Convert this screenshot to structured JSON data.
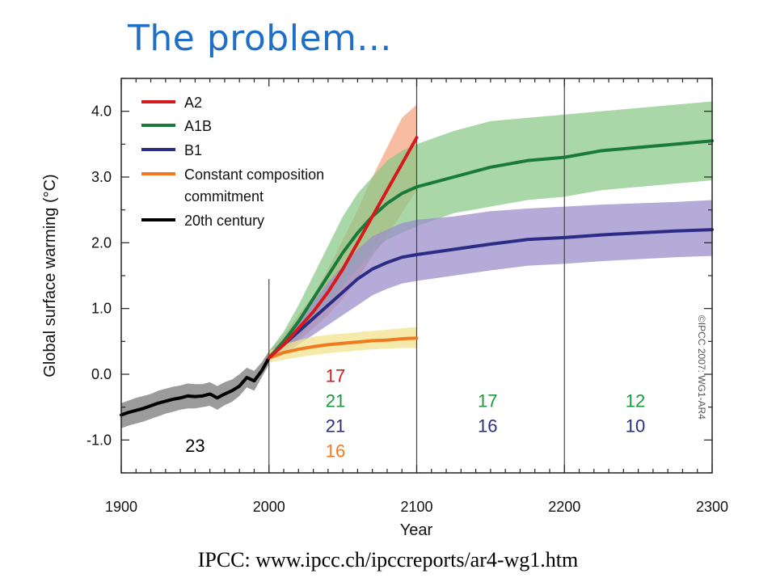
{
  "slide": {
    "title": "The problem...",
    "source": "IPCC: www.ipcc.ch/ipccreports/ar4-wg1.htm"
  },
  "chart_data": {
    "type": "line",
    "title": "",
    "xlabel": "Year",
    "ylabel": "Global surface warming (°C)",
    "xlim": [
      1900,
      2300
    ],
    "ylim": [
      -1.5,
      4.5
    ],
    "x_ticks": [
      1900,
      2000,
      2100,
      2200,
      2300
    ],
    "y_ticks": [
      -1.0,
      0.0,
      1.0,
      2.0,
      3.0,
      4.0
    ],
    "y_tick_labels": [
      "-1.0",
      "0.0",
      "1.0",
      "2.0",
      "3.0",
      "4.0"
    ],
    "vertical_lines": [
      2000,
      2100,
      2200
    ],
    "legend_position": "top-left",
    "watermark": "©IPCC 2007: WG1-AR4",
    "series": [
      {
        "name": "A2",
        "color": "#d7191c",
        "band_color": "#f4a582",
        "x": [
          2000,
          2010,
          2020,
          2030,
          2040,
          2050,
          2060,
          2070,
          2080,
          2090,
          2100
        ],
        "values": [
          0.25,
          0.45,
          0.7,
          0.95,
          1.25,
          1.6,
          2.0,
          2.4,
          2.8,
          3.2,
          3.6
        ],
        "lower": [
          0.2,
          0.35,
          0.5,
          0.7,
          0.9,
          1.15,
          1.45,
          1.8,
          2.1,
          2.45,
          2.8
        ],
        "upper": [
          0.35,
          0.6,
          0.9,
          1.2,
          1.6,
          2.05,
          2.5,
          3.0,
          3.45,
          3.9,
          4.1
        ]
      },
      {
        "name": "A1B",
        "color": "#1a7a3a",
        "band_color": "#8cc98a",
        "x": [
          2000,
          2010,
          2020,
          2030,
          2040,
          2050,
          2060,
          2070,
          2080,
          2090,
          2100,
          2125,
          2150,
          2175,
          2200,
          2225,
          2250,
          2275,
          2300
        ],
        "values": [
          0.25,
          0.5,
          0.8,
          1.15,
          1.5,
          1.85,
          2.15,
          2.4,
          2.6,
          2.75,
          2.85,
          3.0,
          3.15,
          3.25,
          3.3,
          3.4,
          3.45,
          3.5,
          3.55
        ],
        "lower": [
          0.2,
          0.35,
          0.55,
          0.8,
          1.05,
          1.35,
          1.6,
          1.85,
          2.05,
          2.15,
          2.25,
          2.45,
          2.55,
          2.65,
          2.7,
          2.8,
          2.85,
          2.9,
          2.95
        ],
        "upper": [
          0.35,
          0.65,
          1.05,
          1.5,
          1.95,
          2.4,
          2.75,
          3.0,
          3.25,
          3.4,
          3.5,
          3.7,
          3.85,
          3.9,
          3.95,
          4.0,
          4.05,
          4.1,
          4.15
        ]
      },
      {
        "name": "B1",
        "color": "#2b2c86",
        "band_color": "#9c8fcb",
        "x": [
          2000,
          2010,
          2020,
          2030,
          2040,
          2050,
          2060,
          2070,
          2080,
          2090,
          2100,
          2125,
          2150,
          2175,
          2200,
          2225,
          2250,
          2275,
          2300
        ],
        "values": [
          0.25,
          0.45,
          0.65,
          0.85,
          1.05,
          1.25,
          1.45,
          1.6,
          1.7,
          1.78,
          1.82,
          1.9,
          1.98,
          2.05,
          2.08,
          2.12,
          2.15,
          2.18,
          2.2
        ],
        "lower": [
          0.2,
          0.3,
          0.45,
          0.6,
          0.75,
          0.9,
          1.05,
          1.2,
          1.3,
          1.38,
          1.42,
          1.5,
          1.58,
          1.65,
          1.68,
          1.72,
          1.75,
          1.78,
          1.8
        ],
        "upper": [
          0.3,
          0.55,
          0.85,
          1.1,
          1.4,
          1.65,
          1.9,
          2.1,
          2.2,
          2.3,
          2.35,
          2.4,
          2.48,
          2.52,
          2.55,
          2.58,
          2.6,
          2.62,
          2.65
        ]
      },
      {
        "name": "Constant composition commitment",
        "label_lines": [
          "Constant composition",
          "commitment"
        ],
        "color": "#f07a1f",
        "band_color": "#f2e38c",
        "x": [
          2000,
          2010,
          2020,
          2030,
          2040,
          2050,
          2060,
          2070,
          2080,
          2090,
          2100
        ],
        "values": [
          0.25,
          0.33,
          0.38,
          0.42,
          0.45,
          0.47,
          0.49,
          0.51,
          0.52,
          0.54,
          0.55
        ],
        "lower": [
          0.18,
          0.22,
          0.26,
          0.29,
          0.32,
          0.34,
          0.36,
          0.38,
          0.39,
          0.4,
          0.4
        ],
        "upper": [
          0.35,
          0.45,
          0.52,
          0.57,
          0.6,
          0.62,
          0.64,
          0.66,
          0.68,
          0.7,
          0.72
        ]
      },
      {
        "name": "20th century",
        "color": "#000000",
        "band_color": "#7a7a7a",
        "x": [
          1900,
          1905,
          1910,
          1915,
          1920,
          1925,
          1930,
          1935,
          1940,
          1945,
          1950,
          1955,
          1960,
          1965,
          1970,
          1975,
          1980,
          1985,
          1990,
          1995,
          2000
        ],
        "values": [
          -0.62,
          -0.58,
          -0.55,
          -0.52,
          -0.48,
          -0.44,
          -0.41,
          -0.38,
          -0.36,
          -0.33,
          -0.34,
          -0.33,
          -0.3,
          -0.36,
          -0.3,
          -0.25,
          -0.18,
          -0.05,
          -0.1,
          0.05,
          0.25
        ],
        "lower": [
          -0.82,
          -0.78,
          -0.75,
          -0.72,
          -0.68,
          -0.64,
          -0.6,
          -0.57,
          -0.54,
          -0.52,
          -0.52,
          -0.5,
          -0.48,
          -0.54,
          -0.47,
          -0.42,
          -0.33,
          -0.2,
          -0.25,
          -0.05,
          0.15
        ],
        "upper": [
          -0.44,
          -0.4,
          -0.36,
          -0.33,
          -0.3,
          -0.25,
          -0.22,
          -0.19,
          -0.17,
          -0.14,
          -0.15,
          -0.15,
          -0.12,
          -0.18,
          -0.12,
          -0.08,
          0.0,
          0.1,
          0.05,
          0.18,
          0.35
        ]
      }
    ],
    "model_counts": [
      {
        "label": "23",
        "color": "#000000",
        "x": 1950,
        "y": -1.08
      },
      {
        "label": "17",
        "color": "#d7191c",
        "x": 2045,
        "y": -0.02
      },
      {
        "label": "21",
        "color": "#1a9a3a",
        "x": 2045,
        "y": -0.4
      },
      {
        "label": "21",
        "color": "#2b2c86",
        "x": 2045,
        "y": -0.78
      },
      {
        "label": "16",
        "color": "#f07a1f",
        "x": 2045,
        "y": -1.16
      },
      {
        "label": "17",
        "color": "#1a9a3a",
        "x": 2148,
        "y": -0.4
      },
      {
        "label": "16",
        "color": "#2b2c86",
        "x": 2148,
        "y": -0.78
      },
      {
        "label": "12",
        "color": "#1a9a3a",
        "x": 2248,
        "y": -0.4
      },
      {
        "label": "10",
        "color": "#2b2c86",
        "x": 2248,
        "y": -0.78
      }
    ]
  }
}
